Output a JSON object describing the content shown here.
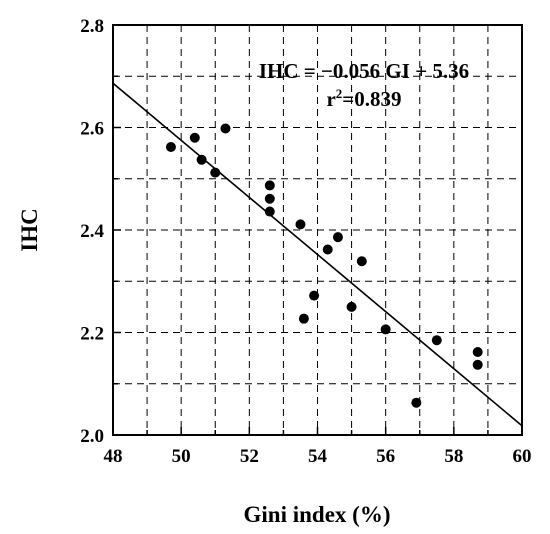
{
  "chart_data": {
    "type": "scatter",
    "xlabel": "Gini index (%)",
    "ylabel": "IHC",
    "xlim": [
      48,
      60
    ],
    "ylim": [
      2.0,
      2.8
    ],
    "x_ticks": [
      "48",
      "50",
      "52",
      "54",
      "56",
      "58",
      "60"
    ],
    "y_ticks": [
      "2.0",
      "2.2",
      "2.4",
      "2.6",
      "2.8"
    ],
    "grid": true,
    "annotations": {
      "equation": "IHC = −0.056 GI + 5.36",
      "r2_prefix": "r",
      "r2_sup": "2",
      "r2_suffix": "=0.839"
    },
    "fit_line": {
      "slope": -0.0557,
      "intercept": 5.36
    },
    "points": [
      {
        "x": 49.7,
        "y": 2.562
      },
      {
        "x": 50.4,
        "y": 2.58
      },
      {
        "x": 50.6,
        "y": 2.537
      },
      {
        "x": 51.0,
        "y": 2.512
      },
      {
        "x": 51.3,
        "y": 2.598
      },
      {
        "x": 52.6,
        "y": 2.487
      },
      {
        "x": 52.6,
        "y": 2.461
      },
      {
        "x": 52.6,
        "y": 2.436
      },
      {
        "x": 53.5,
        "y": 2.411
      },
      {
        "x": 54.3,
        "y": 2.362
      },
      {
        "x": 54.6,
        "y": 2.386
      },
      {
        "x": 55.3,
        "y": 2.339
      },
      {
        "x": 53.9,
        "y": 2.272
      },
      {
        "x": 53.6,
        "y": 2.227
      },
      {
        "x": 55.0,
        "y": 2.25
      },
      {
        "x": 56.0,
        "y": 2.206
      },
      {
        "x": 57.5,
        "y": 2.185
      },
      {
        "x": 58.7,
        "y": 2.162
      },
      {
        "x": 58.7,
        "y": 2.137
      },
      {
        "x": 56.9,
        "y": 2.063
      }
    ]
  }
}
